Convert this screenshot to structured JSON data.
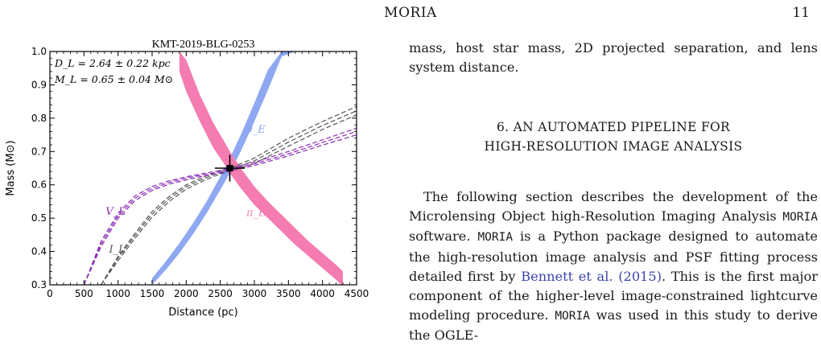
{
  "running_head": {
    "title": "MORIA",
    "page_number": "11"
  },
  "paragraph_1": {
    "text": "mass, host star mass, 2D projected separation, and lens system distance."
  },
  "section": {
    "number": "6.",
    "title_line1": "AN AUTOMATED PIPELINE FOR",
    "title_line2": "HIGH-RESOLUTION IMAGE ANALYSIS"
  },
  "paragraph_2": {
    "t1": "The following section describes the development of the Microlensing Object high-Resolution Imaging Analysis ",
    "moria1": "MORIA",
    "t2": " software. ",
    "moria2": "MORIA",
    "t3": " is a Python package designed to automate the high-resolution image analysis and PSF fitting process detailed first by ",
    "cite_author": "Bennett et al.",
    "t4": " ",
    "cite_year": "(2015)",
    "t5": ". This is the first major component of the higher-level image-constrained lightcurve modeling procedure. ",
    "moria3": "MORIA",
    "t6": " was used in this study to derive the OGLE-"
  },
  "colors": {
    "theta_band": "#8fa8f2",
    "pi_band": "#f47cb0",
    "gray_curves": "#555555",
    "purple_curves": "#8a2cb2"
  },
  "chart_data": {
    "type": "line",
    "title": "KMT-2019-BLG-0253",
    "xlabel": "Distance (pc)",
    "ylabel": "Mass (M⊙)",
    "xlim": [
      0,
      4500
    ],
    "ylim": [
      0.3,
      1.0
    ],
    "xticks": [
      "0",
      "500",
      "1000",
      "1500",
      "2000",
      "2500",
      "3000",
      "3500",
      "4000",
      "4500"
    ],
    "yticks": [
      "0.3",
      "0.4",
      "0.5",
      "0.6",
      "0.7",
      "0.8",
      "0.9",
      "1.0"
    ],
    "annotation": {
      "line1": "D_L = 2.64 ± 0.22 kpc",
      "line2": "M_L = 0.65 ± 0.04 M⊙"
    },
    "series": [
      {
        "name": "θ_E",
        "style": "band",
        "color": "#8fa8f2",
        "x": [
          1500,
          1700,
          1900,
          2100,
          2300,
          2500,
          2640,
          2800,
          3000,
          3200,
          3400,
          3600
        ],
        "lower": [
          0.3,
          0.345,
          0.395,
          0.452,
          0.515,
          0.585,
          0.635,
          0.7,
          0.79,
          0.885,
          0.985,
          1.0
        ],
        "upper": [
          0.32,
          0.37,
          0.425,
          0.485,
          0.55,
          0.625,
          0.68,
          0.75,
          0.845,
          0.945,
          1.0,
          1.0
        ]
      },
      {
        "name": "π_E",
        "style": "band",
        "color": "#f47cb0",
        "x": [
          1900,
          2000,
          2200,
          2400,
          2600,
          2640,
          2800,
          3000,
          3200,
          3400,
          3600,
          3800,
          4000,
          4200,
          4300
        ],
        "lower": [
          0.94,
          0.88,
          0.79,
          0.71,
          0.65,
          0.635,
          0.59,
          0.54,
          0.5,
          0.46,
          0.42,
          0.385,
          0.35,
          0.315,
          0.295
        ],
        "upper": [
          1.0,
          0.975,
          0.87,
          0.785,
          0.715,
          0.7,
          0.65,
          0.595,
          0.55,
          0.51,
          0.47,
          0.43,
          0.395,
          0.36,
          0.34
        ]
      },
      {
        "name": "I_L",
        "style": "dashed",
        "color": "#555555",
        "label_position": "left",
        "x": [
          750,
          1000,
          1250,
          1500,
          1750,
          2000,
          2250,
          2500,
          2640,
          3000,
          3500,
          4000,
          4500
        ],
        "lines": [
          [
            0.3,
            0.385,
            0.455,
            0.52,
            0.565,
            0.6,
            0.623,
            0.643,
            0.65,
            0.68,
            0.74,
            0.79,
            0.835
          ],
          [
            0.3,
            0.38,
            0.448,
            0.512,
            0.558,
            0.594,
            0.618,
            0.638,
            0.645,
            0.672,
            0.728,
            0.778,
            0.822
          ],
          [
            0.3,
            0.372,
            0.44,
            0.503,
            0.55,
            0.587,
            0.612,
            0.633,
            0.64,
            0.664,
            0.716,
            0.766,
            0.81
          ]
        ]
      },
      {
        "name": "V_L",
        "style": "dashed",
        "color": "#8a2cb2",
        "label_position": "left",
        "x": [
          500,
          750,
          1000,
          1250,
          1500,
          1750,
          2000,
          2250,
          2500,
          2640,
          3000,
          3500,
          4000,
          4500
        ],
        "lines": [
          [
            0.3,
            0.43,
            0.515,
            0.567,
            0.595,
            0.612,
            0.624,
            0.634,
            0.643,
            0.65,
            0.668,
            0.7,
            0.735,
            0.77
          ],
          [
            0.3,
            0.422,
            0.507,
            0.56,
            0.589,
            0.607,
            0.62,
            0.63,
            0.639,
            0.646,
            0.663,
            0.693,
            0.727,
            0.76
          ],
          [
            0.3,
            0.414,
            0.499,
            0.553,
            0.583,
            0.602,
            0.615,
            0.626,
            0.635,
            0.642,
            0.658,
            0.687,
            0.719,
            0.75
          ]
        ]
      }
    ],
    "point": {
      "x": 2640,
      "y": 0.65,
      "x_err": 220,
      "y_err": 0.04
    }
  }
}
